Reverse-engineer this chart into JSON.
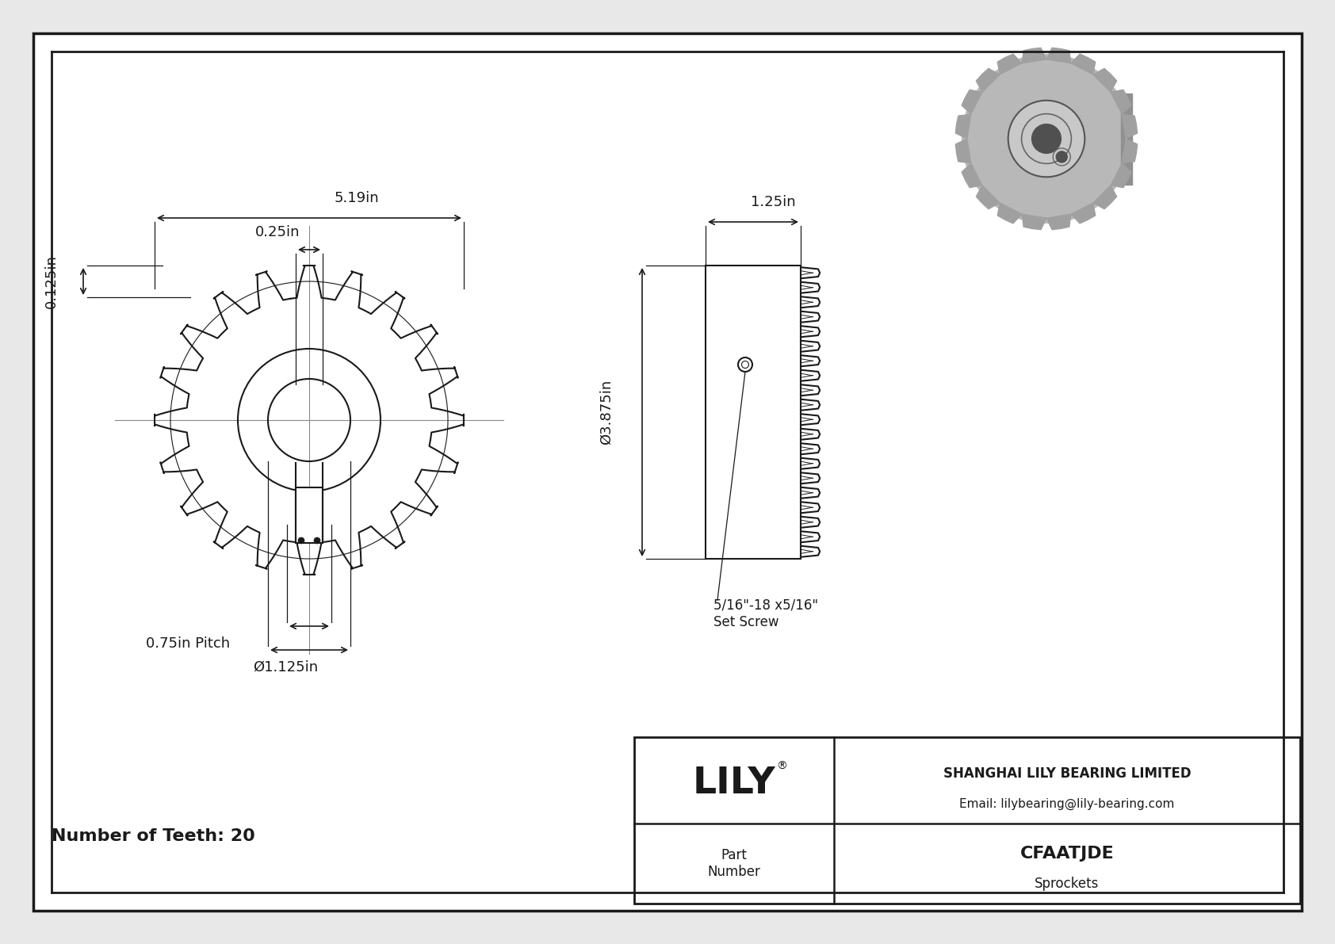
{
  "bg_color": "#e8e8e8",
  "page_bg": "#ffffff",
  "line_color": "#1a1a1a",
  "title": "CFAATJDE",
  "subtitle": "Sprockets",
  "company": "SHANGHAI LILY BEARING LIMITED",
  "email": "Email: lilybearing@lily-bearing.com",
  "num_teeth_label": "Number of Teeth: 20",
  "num_teeth": 20,
  "dim_outer_label": "5.19in",
  "dim_hub_label": "0.25in",
  "dim_tooth_label": "0.125in",
  "dim_bore_label": "Ø1.125in",
  "dim_pitch_label": "0.75in Pitch",
  "dim_width_label": "1.25in",
  "dim_pitch_dia_label": "Ø3.875in",
  "set_screw_label": "5/16\"-18 x5/16\"\nSet Screw",
  "font_family": "DejaVu Sans"
}
